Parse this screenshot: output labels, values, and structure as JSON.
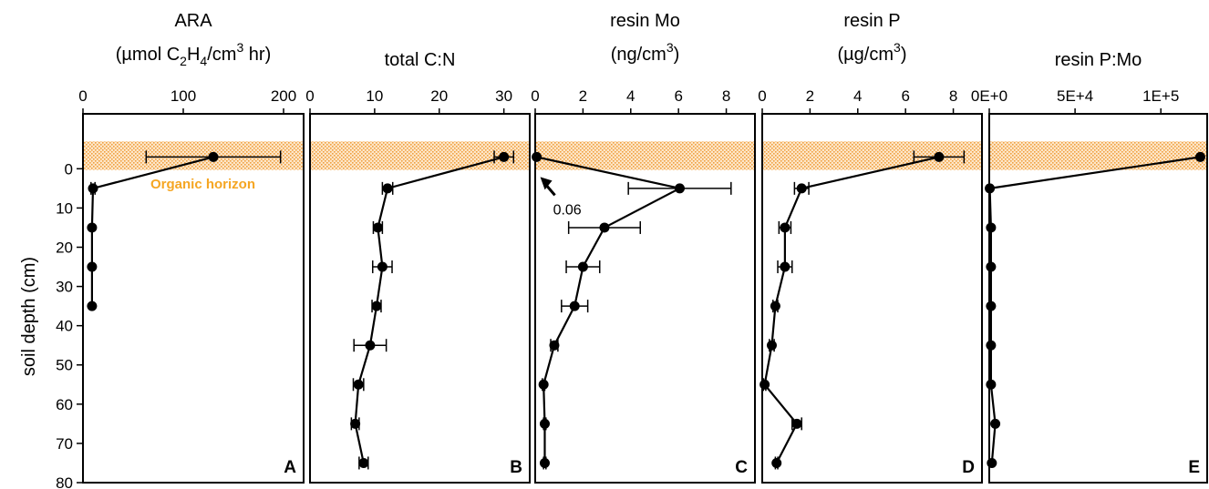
{
  "y_axis": {
    "label": "soil depth (cm)",
    "ticks": [
      0,
      10,
      20,
      30,
      40,
      50,
      60,
      70,
      80
    ],
    "range": [
      80,
      -14
    ],
    "reversed": true
  },
  "horizon": {
    "label": "Organic horizon",
    "color": "#f5a623"
  },
  "chart_data": [
    {
      "type": "line",
      "panel": "A",
      "title": "ARA",
      "xlabel": {
        "t1": "(µmol C",
        "s1": "2",
        "t2": "H",
        "s2": "4",
        "t3": "/cm",
        "sup": "3",
        "t4": " hr)"
      },
      "xlim": [
        0,
        220
      ],
      "xticks": [
        0,
        100,
        200
      ],
      "tick_labels": [
        "0",
        "100",
        "200"
      ],
      "points": [
        {
          "x": 130,
          "y": -3,
          "err": 67
        },
        {
          "x": 10,
          "y": 5,
          "err": 2
        },
        {
          "x": 9,
          "y": 15,
          "err": 0
        },
        {
          "x": 9,
          "y": 25,
          "err": 0
        },
        {
          "x": 9,
          "y": 35,
          "err": 0
        }
      ]
    },
    {
      "type": "line",
      "panel": "B",
      "title": "",
      "xlabel": {
        "t1": "total C:N"
      },
      "xlim": [
        0,
        34
      ],
      "xticks": [
        0,
        10,
        20,
        30
      ],
      "tick_labels": [
        "0",
        "10",
        "20",
        "30"
      ],
      "points": [
        {
          "x": 30,
          "y": -3,
          "err": 1.5
        },
        {
          "x": 12,
          "y": 5,
          "err": 0.8
        },
        {
          "x": 10.5,
          "y": 15,
          "err": 0.7
        },
        {
          "x": 11.2,
          "y": 25,
          "err": 1.5
        },
        {
          "x": 10.3,
          "y": 35,
          "err": 0.7
        },
        {
          "x": 9.3,
          "y": 45,
          "err": 2.5
        },
        {
          "x": 7.5,
          "y": 55,
          "err": 0.8
        },
        {
          "x": 7,
          "y": 65,
          "err": 0.6
        },
        {
          "x": 8.3,
          "y": 75,
          "err": 0.7
        }
      ]
    },
    {
      "type": "line",
      "panel": "C",
      "title": "resin Mo",
      "xlabel": {
        "t1": "(ng/cm",
        "sup": "3",
        "t4": ")"
      },
      "xlim": [
        0,
        9.2
      ],
      "xticks": [
        0,
        2,
        4,
        6,
        8
      ],
      "tick_labels": [
        "0",
        "2",
        "4",
        "6",
        "8"
      ],
      "annotation": "0.06",
      "points": [
        {
          "x": 0.06,
          "y": -3,
          "err": 0
        },
        {
          "x": 6.05,
          "y": 5,
          "err": 2.15
        },
        {
          "x": 2.9,
          "y": 15,
          "err": 1.5
        },
        {
          "x": 2.0,
          "y": 25,
          "err": 0.7
        },
        {
          "x": 1.65,
          "y": 35,
          "err": 0.55
        },
        {
          "x": 0.8,
          "y": 45,
          "err": 0.15
        },
        {
          "x": 0.35,
          "y": 55,
          "err": 0.05
        },
        {
          "x": 0.4,
          "y": 65,
          "err": 0.05
        },
        {
          "x": 0.4,
          "y": 75,
          "err": 0.05
        }
      ]
    },
    {
      "type": "line",
      "panel": "D",
      "title": "resin P",
      "xlabel": {
        "t1": "(µg/cm",
        "sup": "3",
        "t4": ")"
      },
      "xlim": [
        0,
        9.2
      ],
      "xticks": [
        0,
        2,
        4,
        6,
        8
      ],
      "tick_labels": [
        "0",
        "2",
        "4",
        "6",
        "8"
      ],
      "points": [
        {
          "x": 7.4,
          "y": -3,
          "err": 1.05
        },
        {
          "x": 1.65,
          "y": 5,
          "err": 0.3
        },
        {
          "x": 0.95,
          "y": 15,
          "err": 0.25
        },
        {
          "x": 0.95,
          "y": 25,
          "err": 0.3
        },
        {
          "x": 0.55,
          "y": 35,
          "err": 0.1
        },
        {
          "x": 0.4,
          "y": 45,
          "err": 0.1
        },
        {
          "x": 0.1,
          "y": 55,
          "err": 0.05
        },
        {
          "x": 1.45,
          "y": 65,
          "err": 0.2
        },
        {
          "x": 0.6,
          "y": 75,
          "err": 0.05
        }
      ]
    },
    {
      "type": "line",
      "panel": "E",
      "title": "",
      "xlabel": {
        "t1": "resin P:Mo"
      },
      "xlim": [
        0,
        127000
      ],
      "xticks": [
        0,
        50000,
        100000
      ],
      "tick_labels": [
        "0E+0",
        "5E+4",
        "1E+5"
      ],
      "points": [
        {
          "x": 123000,
          "y": -3,
          "err": 0
        },
        {
          "x": 300,
          "y": 5,
          "err": 0
        },
        {
          "x": 1000,
          "y": 15,
          "err": 0
        },
        {
          "x": 1000,
          "y": 25,
          "err": 0
        },
        {
          "x": 1000,
          "y": 35,
          "err": 0
        },
        {
          "x": 1000,
          "y": 45,
          "err": 0
        },
        {
          "x": 1000,
          "y": 55,
          "err": 0
        },
        {
          "x": 3500,
          "y": 65,
          "err": 0
        },
        {
          "x": 1500,
          "y": 75,
          "err": 0
        }
      ]
    }
  ]
}
